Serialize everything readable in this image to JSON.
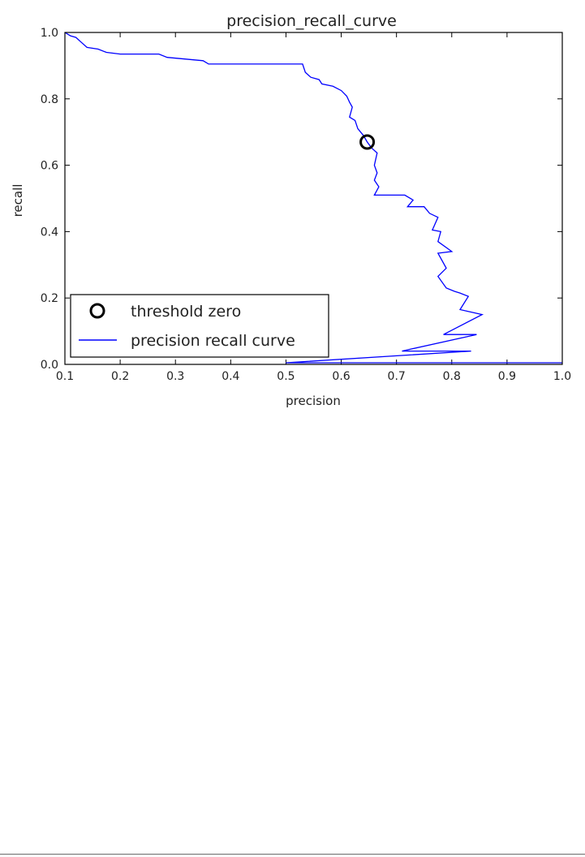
{
  "chart_data": {
    "type": "line",
    "title": "precision_recall_curve",
    "xlabel": "precision",
    "ylabel": "recall",
    "xlim": [
      0.1,
      1.0
    ],
    "ylim": [
      0.0,
      1.0
    ],
    "x_ticks": [
      "0.1",
      "0.2",
      "0.3",
      "0.4",
      "0.5",
      "0.6",
      "0.7",
      "0.8",
      "0.9",
      "1.0"
    ],
    "y_ticks": [
      "0.0",
      "0.2",
      "0.4",
      "0.6",
      "0.8",
      "1.0"
    ],
    "grid": false,
    "legend_position": "lower-left",
    "series": [
      {
        "name": "precision recall curve",
        "color": "#0000ff",
        "points": [
          [
            0.1,
            1.0
          ],
          [
            0.11,
            0.99
          ],
          [
            0.12,
            0.985
          ],
          [
            0.13,
            0.97
          ],
          [
            0.14,
            0.955
          ],
          [
            0.16,
            0.95
          ],
          [
            0.175,
            0.94
          ],
          [
            0.2,
            0.935
          ],
          [
            0.27,
            0.935
          ],
          [
            0.285,
            0.925
          ],
          [
            0.35,
            0.915
          ],
          [
            0.36,
            0.905
          ],
          [
            0.53,
            0.905
          ],
          [
            0.535,
            0.88
          ],
          [
            0.545,
            0.865
          ],
          [
            0.56,
            0.858
          ],
          [
            0.565,
            0.845
          ],
          [
            0.585,
            0.838
          ],
          [
            0.6,
            0.825
          ],
          [
            0.61,
            0.808
          ],
          [
            0.615,
            0.79
          ],
          [
            0.62,
            0.775
          ],
          [
            0.615,
            0.745
          ],
          [
            0.625,
            0.735
          ],
          [
            0.63,
            0.71
          ],
          [
            0.64,
            0.69
          ],
          [
            0.647,
            0.67
          ],
          [
            0.655,
            0.652
          ],
          [
            0.665,
            0.637
          ],
          [
            0.66,
            0.6
          ],
          [
            0.665,
            0.577
          ],
          [
            0.66,
            0.555
          ],
          [
            0.668,
            0.535
          ],
          [
            0.66,
            0.51
          ],
          [
            0.715,
            0.51
          ],
          [
            0.73,
            0.495
          ],
          [
            0.72,
            0.475
          ],
          [
            0.75,
            0.475
          ],
          [
            0.76,
            0.455
          ],
          [
            0.775,
            0.443
          ],
          [
            0.765,
            0.405
          ],
          [
            0.78,
            0.4
          ],
          [
            0.775,
            0.37
          ],
          [
            0.8,
            0.34
          ],
          [
            0.775,
            0.335
          ],
          [
            0.79,
            0.29
          ],
          [
            0.775,
            0.265
          ],
          [
            0.79,
            0.23
          ],
          [
            0.805,
            0.22
          ],
          [
            0.815,
            0.215
          ],
          [
            0.83,
            0.205
          ],
          [
            0.815,
            0.165
          ],
          [
            0.855,
            0.15
          ],
          [
            0.785,
            0.09
          ],
          [
            0.845,
            0.09
          ],
          [
            0.71,
            0.04
          ],
          [
            0.835,
            0.04
          ],
          [
            0.5,
            0.005
          ],
          [
            1.0,
            0.005
          ]
        ]
      },
      {
        "name": "threshold zero",
        "color": "#000000",
        "marker": "circle",
        "points": [
          [
            0.647,
            0.67
          ]
        ]
      }
    ]
  }
}
